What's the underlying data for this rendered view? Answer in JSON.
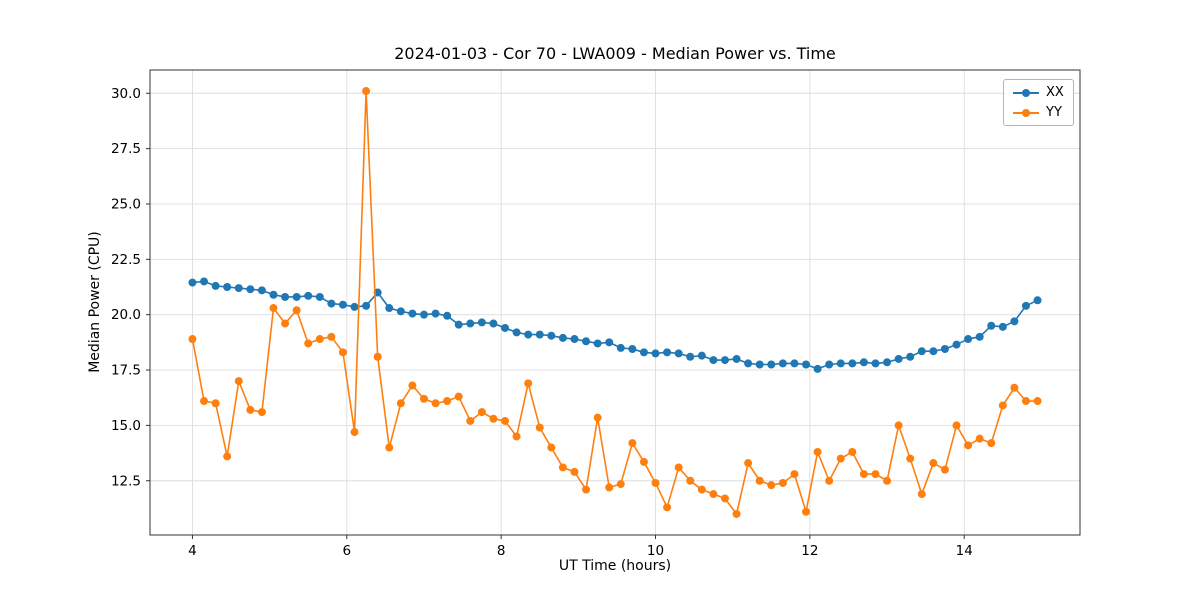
{
  "figure": {
    "background": "#ffffff"
  },
  "chart_data": {
    "type": "line",
    "title": "2024-01-03 - Cor 70 - LWA009 - Median Power vs. Time",
    "xlabel": "UT Time (hours)",
    "ylabel": "Median Power (CPU)",
    "xlim": [
      3.45,
      15.5
    ],
    "ylim": [
      10.05,
      31.05
    ],
    "xticks": [
      4,
      6,
      8,
      10,
      12,
      14
    ],
    "xtick_labels": [
      "4",
      "6",
      "8",
      "10",
      "12",
      "14"
    ],
    "yticks": [
      12.5,
      15.0,
      17.5,
      20.0,
      22.5,
      25.0,
      27.5,
      30.0
    ],
    "ytick_labels": [
      "12.5",
      "15.0",
      "17.5",
      "20.0",
      "22.5",
      "25.0",
      "27.5",
      "30.0"
    ],
    "grid": true,
    "grid_color": "#dddddd",
    "legend_position": "upper right",
    "x": [
      4.0,
      4.15,
      4.3,
      4.45,
      4.6,
      4.75,
      4.9,
      5.05,
      5.2,
      5.35,
      5.5,
      5.65,
      5.8,
      5.95,
      6.1,
      6.25,
      6.4,
      6.55,
      6.7,
      6.85,
      7.0,
      7.15,
      7.3,
      7.45,
      7.6,
      7.75,
      7.9,
      8.05,
      8.2,
      8.35,
      8.5,
      8.65,
      8.8,
      8.95,
      9.1,
      9.25,
      9.4,
      9.55,
      9.7,
      9.85,
      10.0,
      10.15,
      10.3,
      10.45,
      10.6,
      10.75,
      10.9,
      11.05,
      11.2,
      11.35,
      11.5,
      11.65,
      11.8,
      11.95,
      12.1,
      12.25,
      12.4,
      12.55,
      12.7,
      12.85,
      13.0,
      13.15,
      13.3,
      13.45,
      13.6,
      13.75,
      13.9,
      14.05,
      14.2,
      14.35,
      14.5,
      14.65,
      14.8,
      14.95
    ],
    "series": [
      {
        "name": "XX",
        "color": "#1f77b4",
        "values": [
          21.45,
          21.5,
          21.3,
          21.25,
          21.2,
          21.15,
          21.1,
          20.9,
          20.8,
          20.8,
          20.85,
          20.8,
          20.5,
          20.45,
          20.35,
          20.4,
          21.0,
          20.3,
          20.15,
          20.05,
          20.0,
          20.05,
          19.95,
          19.55,
          19.6,
          19.65,
          19.6,
          19.4,
          19.2,
          19.1,
          19.1,
          19.05,
          18.95,
          18.9,
          18.8,
          18.7,
          18.75,
          18.5,
          18.45,
          18.3,
          18.25,
          18.3,
          18.25,
          18.1,
          18.15,
          17.95,
          17.95,
          18.0,
          17.8,
          17.75,
          17.75,
          17.8,
          17.8,
          17.75,
          17.55,
          17.75,
          17.8,
          17.8,
          17.85,
          17.8,
          17.85,
          18.0,
          18.1,
          18.35,
          18.35,
          18.45,
          18.65,
          18.9,
          19.0,
          19.5,
          19.45,
          19.7,
          20.4,
          20.65
        ]
      },
      {
        "name": "YY",
        "color": "#ff7f0e",
        "values": [
          18.9,
          16.1,
          16.0,
          13.6,
          17.0,
          15.7,
          15.6,
          20.3,
          19.6,
          20.2,
          18.7,
          18.9,
          19.0,
          18.3,
          14.7,
          30.1,
          18.1,
          14.0,
          16.0,
          16.8,
          16.2,
          16.0,
          16.1,
          16.3,
          15.2,
          15.6,
          15.3,
          15.2,
          14.5,
          16.9,
          14.9,
          14.0,
          13.1,
          12.9,
          12.1,
          15.35,
          12.2,
          12.35,
          14.2,
          13.35,
          12.4,
          11.3,
          13.1,
          12.5,
          12.1,
          11.9,
          11.7,
          11.0,
          13.3,
          12.5,
          12.3,
          12.4,
          12.8,
          11.1,
          13.8,
          12.5,
          13.5,
          13.8,
          12.8,
          12.8,
          12.5,
          15.0,
          13.5,
          11.9,
          13.3,
          13.0,
          15.0,
          14.1,
          14.4,
          14.2,
          15.9,
          16.7,
          16.1,
          16.1
        ]
      }
    ]
  }
}
